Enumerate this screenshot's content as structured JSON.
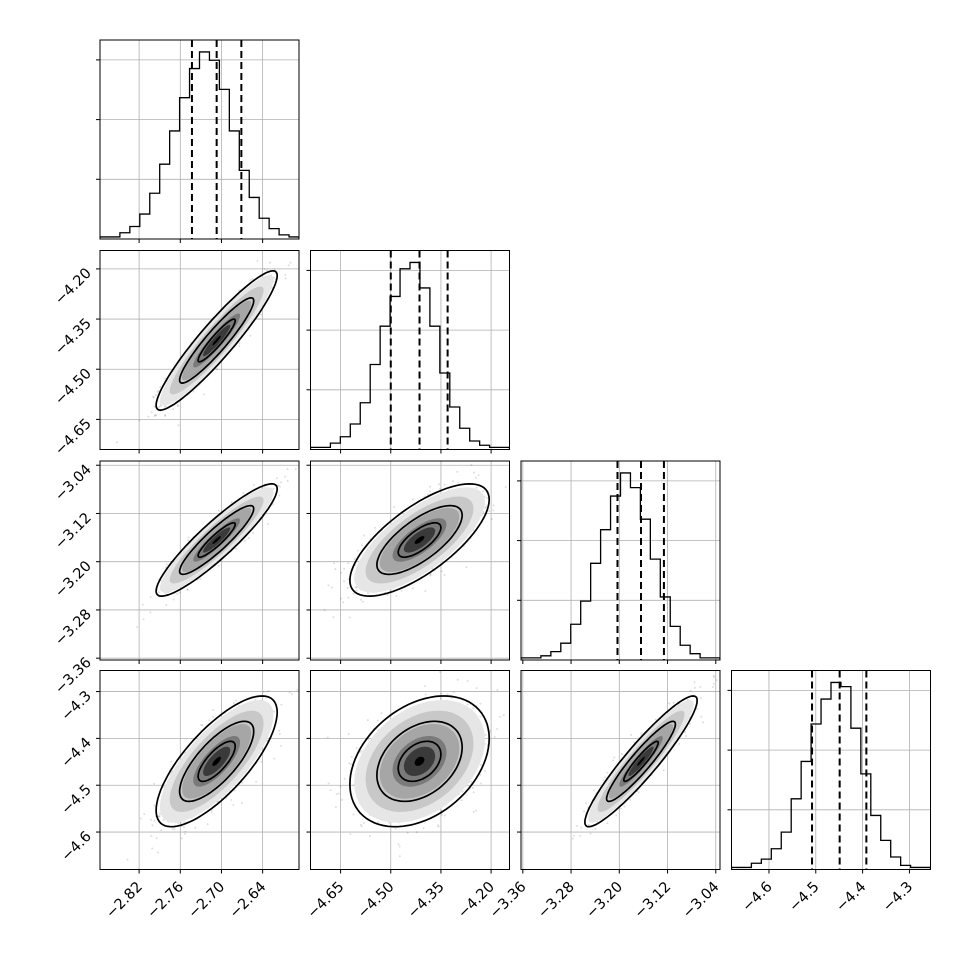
{
  "chart_data": {
    "type": "corner",
    "grid": true,
    "legend": "none",
    "parameters": [
      {
        "index": 0,
        "range": [
          -2.877,
          -2.587
        ],
        "ticks": [
          -2.82,
          -2.76,
          -2.7,
          -2.64
        ],
        "tick_labels": [
          "−2.82",
          "−2.76",
          "−2.70",
          "−2.64"
        ],
        "mean": -2.707,
        "std": 0.036,
        "quantiles": [
          -2.743,
          -2.707,
          -2.671
        ],
        "hist_counts": [
          1,
          1,
          3,
          6,
          12,
          22,
          36,
          52,
          68,
          82,
          90,
          86,
          72,
          52,
          33,
          20,
          10,
          5,
          2,
          1
        ]
      },
      {
        "index": 1,
        "range": [
          -4.74,
          -4.145
        ],
        "ticks": [
          -4.65,
          -4.5,
          -4.35,
          -4.2
        ],
        "tick_labels": [
          "−4.65",
          "−4.50",
          "−4.35",
          "−4.20"
        ],
        "mean": -4.414,
        "std": 0.085,
        "quantiles": [
          -4.5,
          -4.414,
          -4.33
        ],
        "hist_counts": [
          1,
          1,
          3,
          6,
          12,
          22,
          40,
          58,
          72,
          85,
          88,
          76,
          58,
          36,
          20,
          10,
          4,
          2,
          1,
          1
        ]
      },
      {
        "index": 2,
        "range": [
          -3.363,
          -3.033
        ],
        "ticks": [
          -3.36,
          -3.28,
          -3.2,
          -3.12,
          -3.04
        ],
        "tick_labels": [
          "−3.36",
          "−3.28",
          "−3.20",
          "−3.12",
          "−3.04"
        ],
        "mean": -3.164,
        "std": 0.038,
        "quantiles": [
          -3.203,
          -3.164,
          -3.126
        ],
        "hist_counts": [
          1,
          1,
          2,
          4,
          8,
          17,
          28,
          46,
          62,
          78,
          89,
          82,
          67,
          48,
          30,
          16,
          7,
          3,
          1,
          1
        ]
      },
      {
        "index": 3,
        "range": [
          -4.68,
          -4.255
        ],
        "ticks": [
          -4.6,
          -4.5,
          -4.4,
          -4.3
        ],
        "tick_labels": [
          "−4.6",
          "−4.5",
          "−4.4",
          "−4.3"
        ],
        "mean": -4.449,
        "std": 0.057,
        "quantiles": [
          -4.508,
          -4.449,
          -4.392
        ],
        "hist_counts": [
          1,
          1,
          3,
          5,
          10,
          18,
          34,
          52,
          70,
          82,
          90,
          88,
          68,
          46,
          26,
          14,
          6,
          2,
          1,
          1
        ]
      }
    ],
    "correlations": {
      "1_0": 0.93,
      "2_0": 0.91,
      "2_1": 0.72,
      "3_0": 0.75,
      "3_1": 0.35,
      "3_2": 0.93
    }
  }
}
